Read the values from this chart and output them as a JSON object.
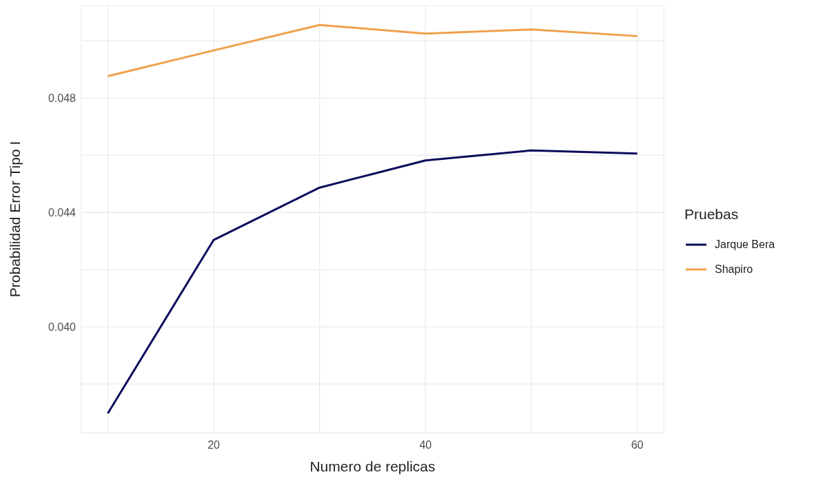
{
  "chart_data": {
    "type": "line",
    "xlabel": "Numero de replicas",
    "ylabel": "Probabilidad Error Tipo I",
    "legend_title": "Pruebas",
    "x": [
      10,
      20,
      30,
      40,
      50,
      60
    ],
    "series": [
      {
        "name": "Jarque Bera",
        "color": "#0b0b5c",
        "values": [
          0.03697,
          0.04304,
          0.04487,
          0.04582,
          0.04617,
          0.04606
        ]
      },
      {
        "name": "Shapiro",
        "color": "#f0a04b",
        "values": [
          0.04877,
          0.04967,
          0.05056,
          0.05026,
          0.0504,
          0.05017
        ]
      }
    ],
    "xlim": [
      7.5,
      62.5
    ],
    "xticks": [
      {
        "value": 10,
        "label": null
      },
      20,
      {
        "value": 30,
        "label": null
      },
      40,
      {
        "value": 50,
        "label": null
      },
      60
    ],
    "ylim": [
      0.03629,
      0.05124
    ],
    "yticks": [
      {
        "value": 0.038,
        "label": null
      },
      {
        "value": 0.04,
        "label": "0.040"
      },
      {
        "value": 0.042,
        "label": null
      },
      {
        "value": 0.044,
        "label": "0.044"
      },
      {
        "value": 0.046,
        "label": null
      },
      {
        "value": 0.048,
        "label": "0.048"
      },
      {
        "value": 0.05,
        "label": null
      }
    ],
    "grid": true,
    "legend": "right",
    "marker": "none",
    "line_style": "solid"
  }
}
